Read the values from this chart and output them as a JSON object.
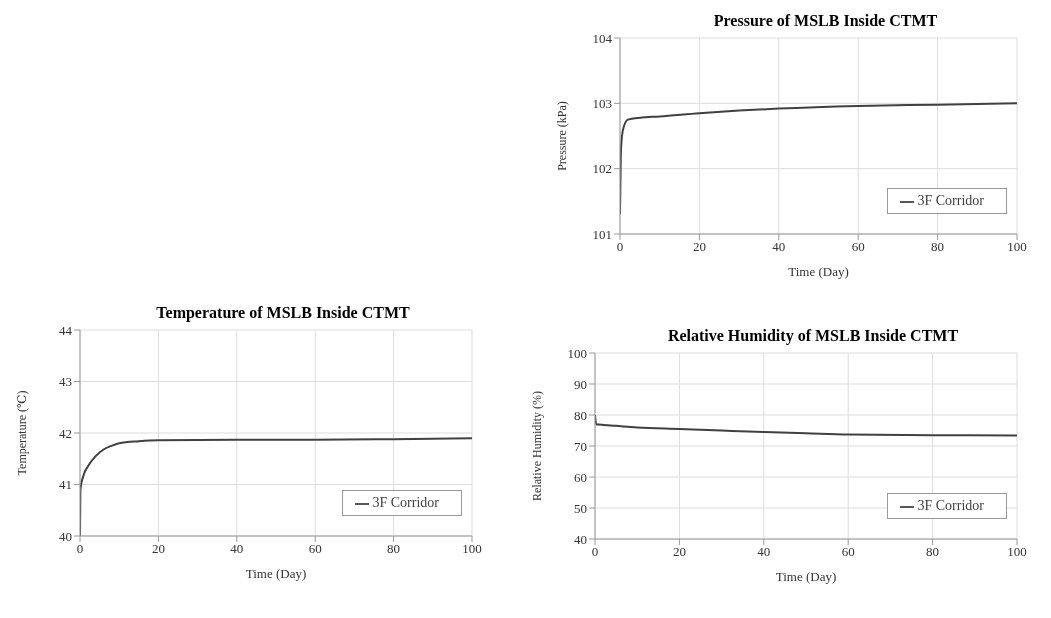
{
  "chart_data": [
    {
      "type": "line",
      "title": "Pressure of MSLB Inside CTMT",
      "xlabel": "Time (Day)",
      "ylabel": "Pressure (kPa)",
      "xlim": [
        0,
        100
      ],
      "xticks": [
        0,
        20,
        40,
        60,
        80,
        100
      ],
      "ylim": [
        101,
        104
      ],
      "yticks": [
        101,
        102,
        103,
        104
      ],
      "grid": true,
      "legend": "bottom right",
      "line_style": "solid",
      "series": [
        {
          "name": "3F Corridor",
          "color": "#404040",
          "x": [
            0,
            0.2,
            0.5,
            1,
            2,
            5,
            10,
            20,
            30,
            40,
            60,
            80,
            100
          ],
          "values": [
            101.3,
            102.2,
            102.5,
            102.65,
            102.75,
            102.78,
            102.8,
            102.85,
            102.89,
            102.92,
            102.96,
            102.98,
            103.0
          ]
        }
      ]
    },
    {
      "type": "line",
      "title": "Temperature of MSLB Inside CTMT",
      "xlabel": "Time (Day)",
      "ylabel": "Temperature (℃)",
      "xlim": [
        0,
        100
      ],
      "xticks": [
        0,
        20,
        40,
        60,
        80,
        100
      ],
      "ylim": [
        40,
        44
      ],
      "yticks": [
        40,
        41,
        42,
        43,
        44
      ],
      "grid": true,
      "legend": "bottom right",
      "line_style": "solid",
      "series": [
        {
          "name": "3F Corridor",
          "color": "#404040",
          "x": [
            0,
            0.1,
            1,
            2,
            4,
            6,
            8,
            10,
            15,
            20,
            40,
            60,
            80,
            100
          ],
          "values": [
            40.0,
            40.9,
            41.2,
            41.35,
            41.55,
            41.68,
            41.75,
            41.8,
            41.84,
            41.86,
            41.87,
            41.87,
            41.88,
            41.9
          ]
        }
      ]
    },
    {
      "type": "line",
      "title": "Relative Humidity of MSLB Inside CTMT",
      "xlabel": "Time (Day)",
      "ylabel": "Relative Humidity (%)",
      "xlim": [
        0,
        100
      ],
      "xticks": [
        0,
        20,
        40,
        60,
        80,
        100
      ],
      "ylim": [
        40,
        100
      ],
      "yticks": [
        40,
        50,
        60,
        70,
        80,
        90,
        100
      ],
      "grid": true,
      "legend": "bottom right",
      "line_style": "solid",
      "series": [
        {
          "name": "3F Corridor",
          "color": "#404040",
          "x": [
            0,
            0.3,
            1,
            5,
            10,
            20,
            30,
            40,
            50,
            60,
            80,
            100
          ],
          "values": [
            80,
            77,
            76.9,
            76.5,
            76,
            75.5,
            75,
            74.5,
            74.1,
            73.7,
            73.5,
            73.4
          ]
        }
      ]
    }
  ]
}
